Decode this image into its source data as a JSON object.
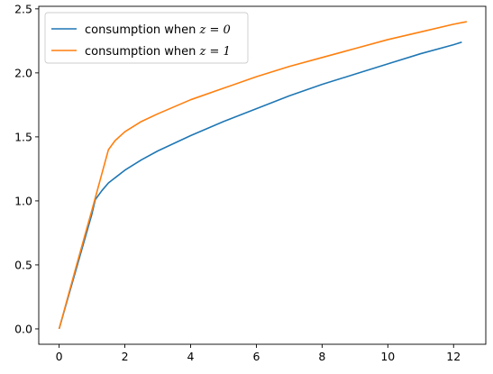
{
  "chart_data": {
    "type": "line",
    "xlim": [
      -0.62,
      12.98
    ],
    "ylim": [
      -0.12,
      2.52
    ],
    "x_ticks": [
      0,
      2,
      4,
      6,
      8,
      10,
      12
    ],
    "y_ticks": [
      0.0,
      0.5,
      1.0,
      1.5,
      2.0,
      2.5
    ],
    "x_tick_labels": [
      "0",
      "2",
      "4",
      "6",
      "8",
      "10",
      "12"
    ],
    "y_tick_labels": [
      "0.0",
      "0.5",
      "1.0",
      "1.5",
      "2.0",
      "2.5"
    ],
    "grid": false,
    "legend_position": "upper-left",
    "series": [
      {
        "name": "consumption when z = 0",
        "legend_prefix": "consumption when ",
        "legend_math": "z = 0",
        "color": "#1f77b4",
        "points": [
          [
            0.0,
            0.0
          ],
          [
            0.5,
            0.45
          ],
          [
            1.0,
            0.9
          ],
          [
            1.1,
            1.01
          ],
          [
            1.3,
            1.08
          ],
          [
            1.5,
            1.14
          ],
          [
            2.0,
            1.24
          ],
          [
            2.5,
            1.32
          ],
          [
            3.0,
            1.39
          ],
          [
            4.0,
            1.51
          ],
          [
            5.0,
            1.62
          ],
          [
            6.0,
            1.72
          ],
          [
            7.0,
            1.82
          ],
          [
            8.0,
            1.91
          ],
          [
            9.0,
            1.99
          ],
          [
            10.0,
            2.07
          ],
          [
            11.0,
            2.15
          ],
          [
            12.0,
            2.22
          ],
          [
            12.25,
            2.24
          ]
        ]
      },
      {
        "name": "consumption when z = 1",
        "legend_prefix": "consumption when ",
        "legend_math": "z = 1",
        "color": "#ff7f0e",
        "points": [
          [
            0.0,
            0.0
          ],
          [
            0.5,
            0.47
          ],
          [
            1.0,
            0.93
          ],
          [
            1.5,
            1.4
          ],
          [
            1.7,
            1.47
          ],
          [
            2.0,
            1.54
          ],
          [
            2.5,
            1.62
          ],
          [
            3.0,
            1.68
          ],
          [
            4.0,
            1.79
          ],
          [
            5.0,
            1.88
          ],
          [
            6.0,
            1.97
          ],
          [
            7.0,
            2.05
          ],
          [
            8.0,
            2.12
          ],
          [
            9.0,
            2.19
          ],
          [
            10.0,
            2.26
          ],
          [
            11.0,
            2.32
          ],
          [
            12.0,
            2.38
          ],
          [
            12.4,
            2.4
          ]
        ]
      }
    ]
  }
}
